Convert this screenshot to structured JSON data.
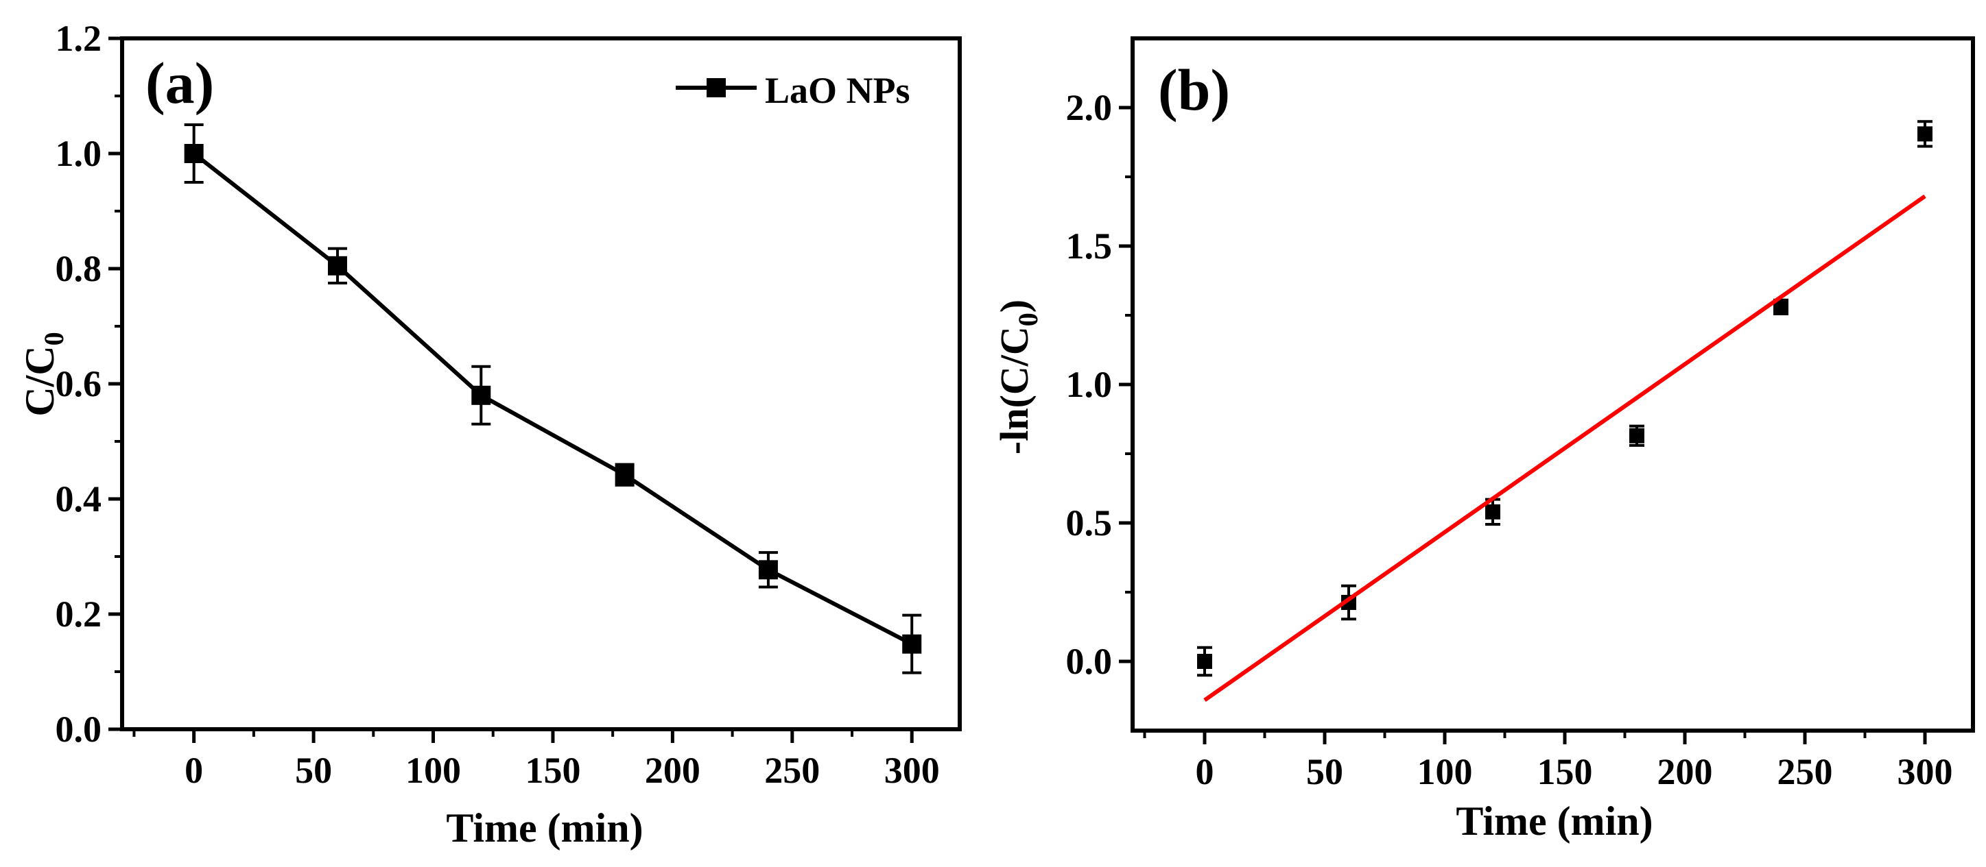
{
  "colors": {
    "axis": "#000000",
    "series": "#000000",
    "fit": "#ff0000",
    "background": "#ffffff"
  },
  "chart_data": [
    {
      "id": "a",
      "type": "line",
      "panel_label": "(a)",
      "title": "",
      "xlabel": "Time (min)",
      "ylabel_main": "C/C",
      "ylabel_sub": "0",
      "xlim": [
        -30,
        320
      ],
      "ylim": [
        0.0,
        1.2
      ],
      "xticks": [
        0,
        50,
        100,
        150,
        200,
        250,
        300
      ],
      "xtick_labels": [
        "0",
        "50",
        "100",
        "150",
        "200",
        "250",
        "300"
      ],
      "yticks": [
        0.0,
        0.2,
        0.4,
        0.6,
        0.8,
        1.0,
        1.2
      ],
      "ytick_labels": [
        "0.0",
        "0.2",
        "0.4",
        "0.6",
        "0.8",
        "1.0",
        "1.2"
      ],
      "legend": {
        "position": "top-right",
        "entries": [
          "LaO NPs"
        ]
      },
      "series": [
        {
          "name": "LaO NPs",
          "x": [
            0,
            60,
            120,
            180,
            240,
            300
          ],
          "y": [
            1.0,
            0.805,
            0.58,
            0.442,
            0.277,
            0.148
          ],
          "err": [
            0.05,
            0.03,
            0.05,
            0.018,
            0.03,
            0.05
          ]
        }
      ]
    },
    {
      "id": "b",
      "type": "scatter",
      "panel_label": "(b)",
      "title": "",
      "xlabel": "Time (min)",
      "ylabel_main": "-ln(C/C",
      "ylabel_sub": "0",
      "ylabel_tail": ")",
      "xlim": [
        -30,
        320
      ],
      "ylim": [
        -0.25,
        2.25
      ],
      "xticks": [
        0,
        50,
        100,
        150,
        200,
        250,
        300
      ],
      "xtick_labels": [
        "0",
        "50",
        "100",
        "150",
        "200",
        "250",
        "300"
      ],
      "yticks": [
        0.0,
        0.5,
        1.0,
        1.5,
        2.0
      ],
      "ytick_labels": [
        "0.0",
        "0.5",
        "1.0",
        "1.5",
        "2.0"
      ],
      "series": [
        {
          "name": "data",
          "x": [
            0,
            60,
            120,
            180,
            240,
            300
          ],
          "y": [
            0.0,
            0.213,
            0.54,
            0.815,
            1.28,
            1.905
          ],
          "err": [
            0.05,
            0.06,
            0.045,
            0.035,
            0.025,
            0.045
          ]
        }
      ],
      "fit_line": {
        "x": [
          0,
          300
        ],
        "y": [
          -0.14,
          1.68
        ]
      }
    }
  ]
}
